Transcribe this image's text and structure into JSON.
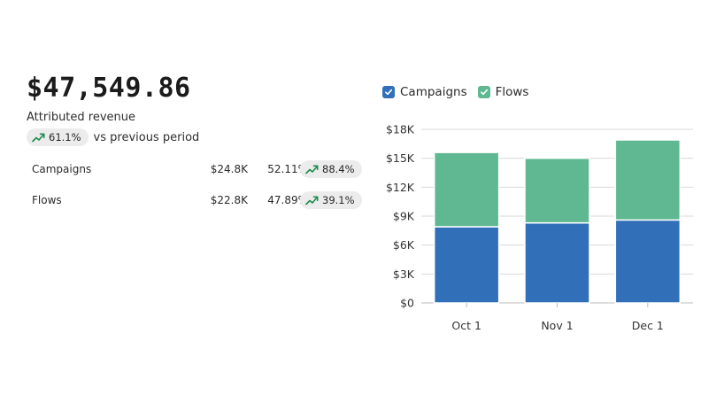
{
  "summary": {
    "total": "$47,549.86",
    "label": "Attributed revenue",
    "change_pct": "61.1%",
    "change_suffix": "vs previous period"
  },
  "breakdown": [
    {
      "name": "Campaigns",
      "amount": "$24.8K",
      "share": "52.11%",
      "change": "88.4%"
    },
    {
      "name": "Flows",
      "amount": "$22.8K",
      "share": "47.89%",
      "change": "39.1%"
    }
  ],
  "colors": {
    "campaigns": "#316fb8",
    "flows": "#5fb891",
    "trend": "#1e8b4f",
    "pill_bg": "#ececec"
  },
  "chart_data": {
    "type": "bar",
    "stacked": true,
    "categories": [
      "Oct 1",
      "Nov 1",
      "Dec 1"
    ],
    "series": [
      {
        "name": "Campaigns",
        "values": [
          7900,
          8300,
          8600
        ]
      },
      {
        "name": "Flows",
        "values": [
          7700,
          6700,
          8300
        ]
      }
    ],
    "ylim": [
      0,
      18000
    ],
    "yticks": [
      0,
      3000,
      6000,
      9000,
      12000,
      15000,
      18000
    ],
    "ytick_labels": [
      "$0",
      "$3K",
      "$6K",
      "$9K",
      "$12K",
      "$15K",
      "$18K"
    ],
    "grid": true,
    "legend": "top-left"
  }
}
